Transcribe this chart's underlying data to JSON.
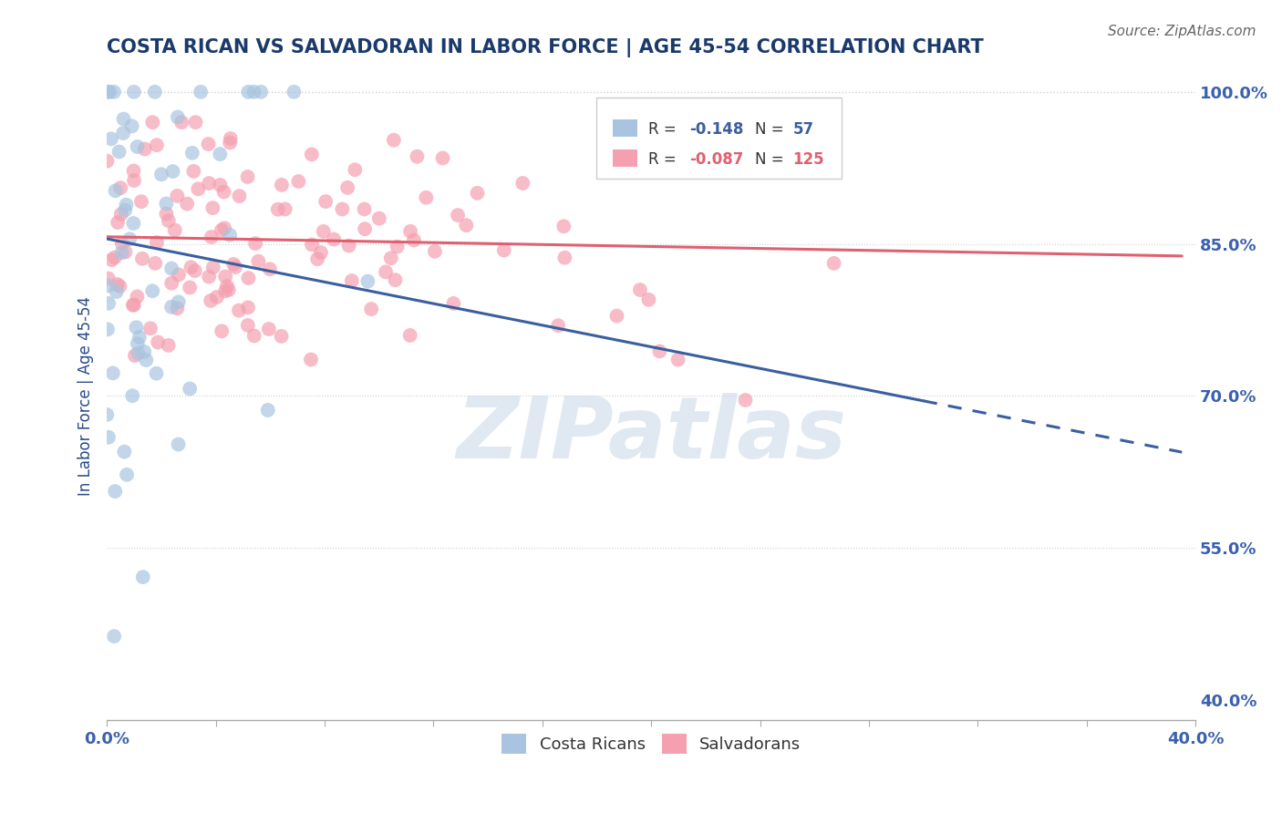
{
  "title": "COSTA RICAN VS SALVADORAN IN LABOR FORCE | AGE 45-54 CORRELATION CHART",
  "source_text": "Source: ZipAtlas.com",
  "ylabel": "In Labor Force | Age 45-54",
  "xlim": [
    0.0,
    0.4
  ],
  "ylim": [
    0.38,
    1.02
  ],
  "xticks": [
    0.0,
    0.04,
    0.08,
    0.12,
    0.16,
    0.2,
    0.24,
    0.28,
    0.32,
    0.36,
    0.4
  ],
  "xticklabels": [
    "0.0%",
    "",
    "",
    "",
    "",
    "",
    "",
    "",
    "",
    "",
    "40.0%"
  ],
  "ytick_positions": [
    0.4,
    0.55,
    0.7,
    0.85,
    1.0
  ],
  "ytick_labels_right": [
    "40.0%",
    "55.0%",
    "70.0%",
    "85.0%",
    "100.0%"
  ],
  "blue_R": -0.148,
  "blue_N": 57,
  "pink_R": -0.087,
  "pink_N": 125,
  "blue_color": "#a8c4e0",
  "pink_color": "#f4a0b0",
  "blue_line_color": "#3a5fa0",
  "pink_line_color": "#e06070",
  "watermark": "ZIPatlas",
  "watermark_color": "#c8d8e8",
  "legend_label_blue": "Costa Ricans",
  "legend_label_pink": "Salvadorans",
  "title_color": "#1a3a6b",
  "title_fontsize": 15,
  "axis_label_color": "#2a4a8a",
  "tick_label_color": "#3a60b0",
  "background_color": "#ffffff",
  "grid_color": "#d0d0d0",
  "blue_line_x0": 0.0,
  "blue_line_y0": 0.855,
  "blue_line_x1": 0.3,
  "blue_line_y1": 0.695,
  "blue_line_xdash0": 0.3,
  "blue_line_xdash1": 0.395,
  "pink_line_x0": 0.0,
  "pink_line_y0": 0.857,
  "pink_line_x1": 0.395,
  "pink_line_y1": 0.838,
  "dot_size": 130,
  "dot_alpha": 0.7
}
